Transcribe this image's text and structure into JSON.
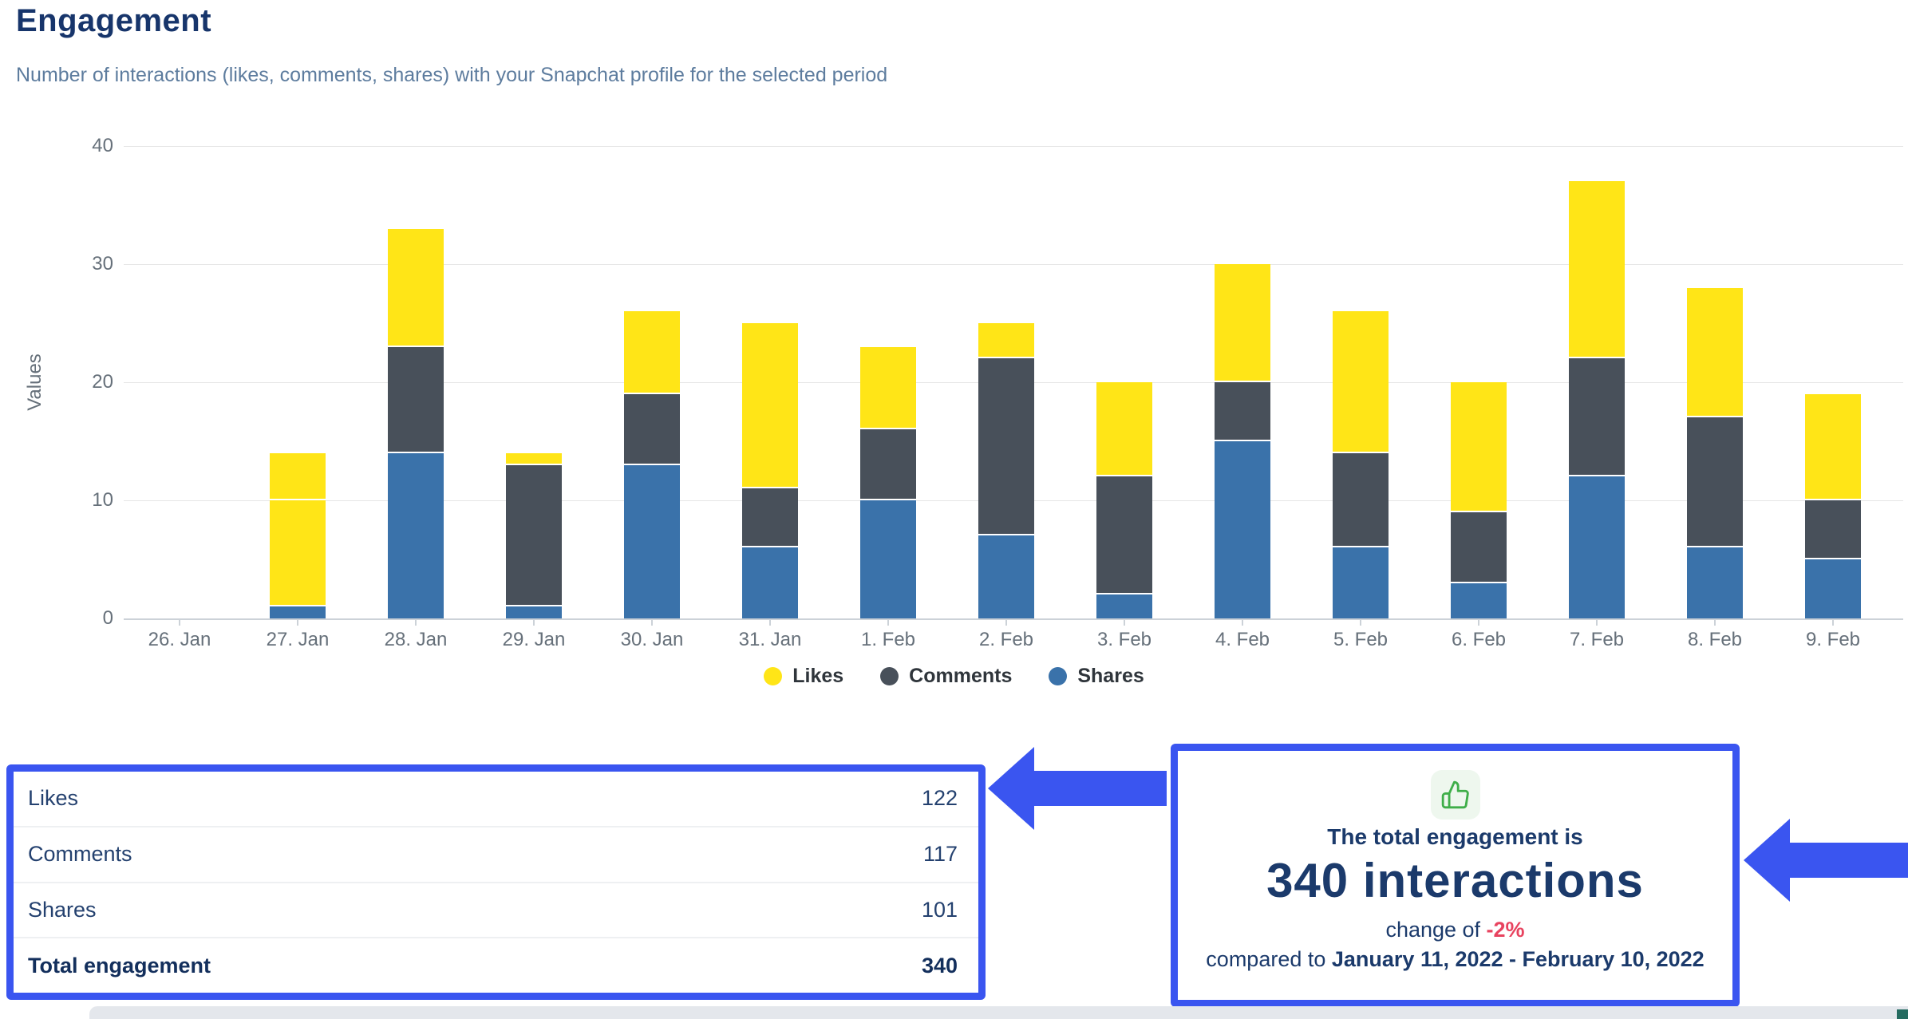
{
  "header": {
    "title": "Engagement",
    "subtitle": "Number of interactions (likes, comments, shares) with your Snapchat profile for the selected period"
  },
  "chart_data": {
    "type": "bar",
    "stacked": true,
    "title": "Engagement",
    "ylabel": "Values",
    "xlabel": "",
    "ylim": [
      0,
      40
    ],
    "yticks": [
      0,
      10,
      20,
      30,
      40
    ],
    "grid": "horizontal",
    "legend_position": "bottom-center",
    "categories": [
      "26. Jan",
      "27. Jan",
      "28. Jan",
      "29. Jan",
      "30. Jan",
      "31. Jan",
      "1. Feb",
      "2. Feb",
      "3. Feb",
      "4. Feb",
      "5. Feb",
      "6. Feb",
      "7. Feb",
      "8. Feb",
      "9. Feb"
    ],
    "series": [
      {
        "name": "Likes",
        "color": "#ffe517",
        "values": [
          0,
          4,
          10,
          1,
          7,
          14,
          7,
          3,
          8,
          10,
          12,
          11,
          15,
          11,
          9
        ]
      },
      {
        "name": "Comments",
        "color": "#48505a",
        "values": [
          0,
          9,
          9,
          12,
          6,
          5,
          6,
          15,
          10,
          5,
          8,
          6,
          10,
          11,
          5
        ]
      },
      {
        "name": "Shares",
        "color": "#3a72aa",
        "values": [
          0,
          1,
          14,
          1,
          13,
          6,
          10,
          7,
          2,
          15,
          6,
          3,
          12,
          6,
          5
        ]
      }
    ],
    "stack_order_bottom_to_top": [
      "Shares",
      "Comments",
      "Likes"
    ],
    "point_color_overrides": [
      {
        "series": "Comments",
        "category_index": 1,
        "color": "#ffe517",
        "note": "27. Jan comments segment is rendered likes-yellow in the source screenshot (white segment border visible at y=10)"
      }
    ],
    "totals_per_category": [
      0,
      14,
      33,
      14,
      26,
      25,
      23,
      25,
      20,
      30,
      26,
      20,
      37,
      28,
      19
    ],
    "legend": [
      {
        "label": "Likes",
        "color": "#ffe517"
      },
      {
        "label": "Comments",
        "color": "#48505a"
      },
      {
        "label": "Shares",
        "color": "#3a72aa"
      }
    ]
  },
  "summary_table": {
    "rows": [
      {
        "label": "Likes",
        "value": "122"
      },
      {
        "label": "Comments",
        "value": "117"
      },
      {
        "label": "Shares",
        "value": "101"
      }
    ],
    "total_row": {
      "label": "Total engagement",
      "value": "340"
    }
  },
  "summary_card": {
    "icon": "thumbs-up-icon",
    "heading": "The total engagement is",
    "headline": "340 interactions",
    "change_prefix": "change of ",
    "change_value": "-2%",
    "compare_prefix": "compared to ",
    "compare_range": "January 11, 2022 - February 10, 2022"
  },
  "colors": {
    "accent_blue": "#3a55f0",
    "navy_text": "#1b3a6b",
    "subtitle_gray_blue": "#5d7c9e",
    "negative_red": "#e8435f",
    "icon_green": "#3fae49",
    "gridline": "#e6e6e6",
    "axis_text": "#66707a"
  }
}
